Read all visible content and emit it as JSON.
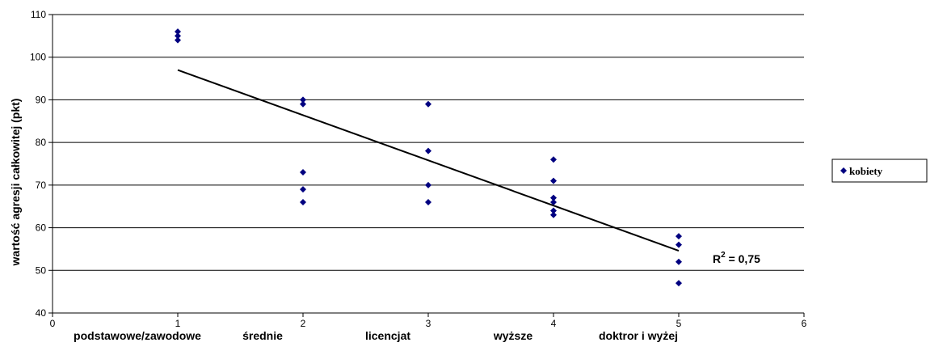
{
  "chart_data": {
    "type": "scatter",
    "ylabel": "wartość agresji całkowitej (pkt)",
    "xlim": [
      0,
      6
    ],
    "ylim": [
      40,
      110
    ],
    "x_ticks": [
      0,
      1,
      2,
      3,
      4,
      5,
      6
    ],
    "y_ticks": [
      40,
      50,
      60,
      70,
      80,
      90,
      100,
      110
    ],
    "grid": "horizontal",
    "categories": [
      {
        "x": 1,
        "label": "podstawowe/zawodowe"
      },
      {
        "x": 2,
        "label": "średnie"
      },
      {
        "x": 3,
        "label": "licencjat"
      },
      {
        "x": 4,
        "label": "wyższe"
      },
      {
        "x": 5,
        "label": "doktror i wyżej"
      }
    ],
    "series": [
      {
        "name": "kobiety",
        "color": "#000080",
        "marker": "diamond",
        "points": [
          {
            "x": 1,
            "y": 106
          },
          {
            "x": 1,
            "y": 105
          },
          {
            "x": 1,
            "y": 104
          },
          {
            "x": 2,
            "y": 90
          },
          {
            "x": 2,
            "y": 89
          },
          {
            "x": 2,
            "y": 73
          },
          {
            "x": 2,
            "y": 69
          },
          {
            "x": 2,
            "y": 66
          },
          {
            "x": 3,
            "y": 89
          },
          {
            "x": 3,
            "y": 78
          },
          {
            "x": 3,
            "y": 70
          },
          {
            "x": 3,
            "y": 66
          },
          {
            "x": 4,
            "y": 76
          },
          {
            "x": 4,
            "y": 71
          },
          {
            "x": 4,
            "y": 67
          },
          {
            "x": 4,
            "y": 66
          },
          {
            "x": 4,
            "y": 64
          },
          {
            "x": 4,
            "y": 63
          },
          {
            "x": 5,
            "y": 58
          },
          {
            "x": 5,
            "y": 56
          },
          {
            "x": 5,
            "y": 52
          },
          {
            "x": 5,
            "y": 47
          }
        ]
      }
    ],
    "trendline": {
      "x1": 1,
      "y1": 97,
      "x2": 5,
      "y2": 54.6,
      "color": "#000000"
    },
    "r2_label": "R",
    "r2_sup": "2",
    "r2_value": " = 0,75",
    "legend_position": "right"
  }
}
